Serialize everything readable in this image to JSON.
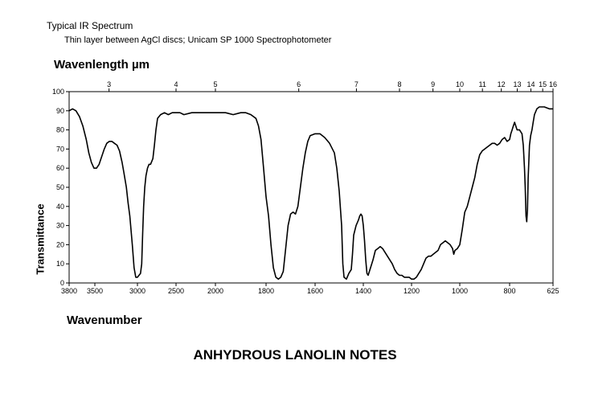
{
  "header": {
    "title": "Typical IR Spectrum",
    "subtitle": "Thin layer between AgCl discs; Unicam SP 1000 Spectrophotometer"
  },
  "footer": {
    "title": "ANHYDROUS LANOLIN NOTES"
  },
  "chart_data": {
    "type": "line",
    "title": "Typical IR Spectrum",
    "xlabel": "Wavenumber",
    "ylabel": "Transmittance",
    "x2label": "Wavenlength µm",
    "x_ticks": [
      3800,
      3500,
      3000,
      2500,
      2000,
      1800,
      1600,
      1400,
      1200,
      1000,
      800,
      625
    ],
    "x2_ticks": [
      "3",
      "4",
      "5",
      "6",
      "7",
      "8",
      "9",
      "10",
      "11",
      "12",
      "13",
      "14",
      "15",
      "16"
    ],
    "y_ticks": [
      0,
      10,
      20,
      30,
      40,
      50,
      60,
      70,
      80,
      90,
      100
    ],
    "ylim": [
      0,
      100
    ],
    "grid": false,
    "series": [
      {
        "name": "",
        "points": [
          [
            3800,
            90
          ],
          [
            3760,
            91
          ],
          [
            3720,
            90
          ],
          [
            3680,
            87
          ],
          [
            3640,
            82
          ],
          [
            3600,
            75
          ],
          [
            3570,
            68
          ],
          [
            3540,
            63
          ],
          [
            3510,
            60
          ],
          [
            3480,
            60
          ],
          [
            3450,
            62
          ],
          [
            3420,
            66
          ],
          [
            3390,
            70
          ],
          [
            3360,
            73
          ],
          [
            3330,
            74
          ],
          [
            3300,
            74
          ],
          [
            3270,
            73
          ],
          [
            3240,
            72
          ],
          [
            3210,
            69
          ],
          [
            3180,
            63
          ],
          [
            3160,
            58
          ],
          [
            3130,
            50
          ],
          [
            3110,
            42
          ],
          [
            3090,
            35
          ],
          [
            3060,
            20
          ],
          [
            3040,
            8
          ],
          [
            3020,
            3
          ],
          [
            3000,
            3
          ],
          [
            2980,
            4
          ],
          [
            2960,
            5
          ],
          [
            2945,
            10
          ],
          [
            2932,
            26
          ],
          [
            2920,
            40
          ],
          [
            2905,
            50
          ],
          [
            2890,
            56
          ],
          [
            2870,
            60
          ],
          [
            2850,
            62
          ],
          [
            2830,
            62
          ],
          [
            2800,
            65
          ],
          [
            2780,
            72
          ],
          [
            2760,
            80
          ],
          [
            2740,
            86
          ],
          [
            2700,
            88
          ],
          [
            2650,
            89
          ],
          [
            2600,
            88
          ],
          [
            2550,
            89
          ],
          [
            2500,
            89
          ],
          [
            2450,
            89
          ],
          [
            2400,
            88
          ],
          [
            2300,
            89
          ],
          [
            2200,
            89
          ],
          [
            2100,
            89
          ],
          [
            2050,
            89
          ],
          [
            2000,
            89
          ],
          [
            1960,
            89
          ],
          [
            1930,
            88
          ],
          [
            1900,
            89
          ],
          [
            1880,
            89
          ],
          [
            1860,
            88
          ],
          [
            1840,
            86
          ],
          [
            1830,
            82
          ],
          [
            1820,
            75
          ],
          [
            1810,
            60
          ],
          [
            1800,
            45
          ],
          [
            1790,
            35
          ],
          [
            1780,
            20
          ],
          [
            1770,
            8
          ],
          [
            1760,
            3
          ],
          [
            1750,
            2
          ],
          [
            1740,
            3
          ],
          [
            1730,
            6
          ],
          [
            1720,
            18
          ],
          [
            1710,
            30
          ],
          [
            1700,
            36
          ],
          [
            1690,
            37
          ],
          [
            1680,
            36
          ],
          [
            1670,
            40
          ],
          [
            1660,
            50
          ],
          [
            1650,
            60
          ],
          [
            1640,
            68
          ],
          [
            1630,
            74
          ],
          [
            1620,
            77
          ],
          [
            1600,
            78
          ],
          [
            1580,
            78
          ],
          [
            1570,
            77
          ],
          [
            1560,
            76
          ],
          [
            1540,
            73
          ],
          [
            1520,
            68
          ],
          [
            1510,
            60
          ],
          [
            1500,
            48
          ],
          [
            1490,
            30
          ],
          [
            1485,
            10
          ],
          [
            1480,
            3
          ],
          [
            1470,
            2
          ],
          [
            1460,
            5
          ],
          [
            1450,
            7
          ],
          [
            1445,
            15
          ],
          [
            1440,
            25
          ],
          [
            1430,
            30
          ],
          [
            1420,
            33
          ],
          [
            1415,
            35
          ],
          [
            1410,
            36
          ],
          [
            1405,
            35
          ],
          [
            1400,
            30
          ],
          [
            1395,
            22
          ],
          [
            1390,
            12
          ],
          [
            1385,
            5
          ],
          [
            1380,
            4
          ],
          [
            1370,
            8
          ],
          [
            1360,
            12
          ],
          [
            1350,
            17
          ],
          [
            1340,
            18
          ],
          [
            1330,
            19
          ],
          [
            1320,
            18
          ],
          [
            1310,
            16
          ],
          [
            1300,
            14
          ],
          [
            1290,
            12
          ],
          [
            1280,
            10
          ],
          [
            1270,
            7
          ],
          [
            1260,
            5
          ],
          [
            1250,
            4
          ],
          [
            1240,
            4
          ],
          [
            1230,
            3
          ],
          [
            1220,
            3
          ],
          [
            1210,
            3
          ],
          [
            1200,
            2
          ],
          [
            1190,
            2
          ],
          [
            1180,
            3
          ],
          [
            1170,
            5
          ],
          [
            1160,
            7
          ],
          [
            1150,
            10
          ],
          [
            1140,
            13
          ],
          [
            1130,
            14
          ],
          [
            1120,
            14
          ],
          [
            1110,
            15
          ],
          [
            1100,
            16
          ],
          [
            1090,
            17
          ],
          [
            1080,
            20
          ],
          [
            1070,
            21
          ],
          [
            1060,
            22
          ],
          [
            1050,
            21
          ],
          [
            1040,
            20
          ],
          [
            1030,
            18
          ],
          [
            1025,
            15
          ],
          [
            1020,
            17
          ],
          [
            1010,
            18
          ],
          [
            1000,
            20
          ],
          [
            990,
            28
          ],
          [
            980,
            37
          ],
          [
            970,
            40
          ],
          [
            960,
            45
          ],
          [
            950,
            50
          ],
          [
            940,
            55
          ],
          [
            930,
            62
          ],
          [
            920,
            67
          ],
          [
            910,
            69
          ],
          [
            900,
            70
          ],
          [
            890,
            71
          ],
          [
            880,
            72
          ],
          [
            870,
            73
          ],
          [
            860,
            73
          ],
          [
            850,
            72
          ],
          [
            840,
            73
          ],
          [
            830,
            75
          ],
          [
            820,
            76
          ],
          [
            810,
            74
          ],
          [
            800,
            75
          ],
          [
            795,
            78
          ],
          [
            790,
            80
          ],
          [
            785,
            82
          ],
          [
            780,
            84
          ],
          [
            775,
            82
          ],
          [
            770,
            80
          ],
          [
            760,
            80
          ],
          [
            750,
            78
          ],
          [
            745,
            72
          ],
          [
            740,
            60
          ],
          [
            737,
            50
          ],
          [
            734,
            35
          ],
          [
            731,
            32
          ],
          [
            728,
            38
          ],
          [
            725,
            55
          ],
          [
            720,
            72
          ],
          [
            715,
            77
          ],
          [
            710,
            80
          ],
          [
            705,
            84
          ],
          [
            700,
            88
          ],
          [
            690,
            91
          ],
          [
            680,
            92
          ],
          [
            660,
            92
          ],
          [
            640,
            91
          ],
          [
            625,
            91
          ]
        ]
      }
    ]
  }
}
